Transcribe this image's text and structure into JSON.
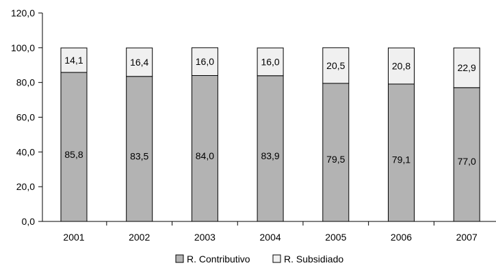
{
  "chart_data": {
    "type": "bar",
    "stacked": true,
    "categories": [
      "2001",
      "2002",
      "2003",
      "2004",
      "2005",
      "2006",
      "2007"
    ],
    "series": [
      {
        "name": "R. Contributivo",
        "color": "#b3b3b3",
        "values": [
          85.8,
          83.5,
          84.0,
          83.9,
          79.5,
          79.1,
          77.0
        ],
        "labels": [
          "85,8",
          "83,5",
          "84,0",
          "83,9",
          "79,5",
          "79,1",
          "77,0"
        ]
      },
      {
        "name": "R. Subsidiado",
        "color": "#f0f0f0",
        "values": [
          14.1,
          16.4,
          16.0,
          16.0,
          20.5,
          20.8,
          22.9
        ],
        "labels": [
          "14,1",
          "16,4",
          "16,0",
          "16,0",
          "20,5",
          "20,8",
          "22,9"
        ]
      }
    ],
    "ylim": [
      0,
      120
    ],
    "yticks": [
      0,
      20,
      40,
      60,
      80,
      100,
      120
    ],
    "ytick_labels": [
      "0,0",
      "20,0",
      "40,0",
      "60,0",
      "80,0",
      "100,0",
      "120,0"
    ],
    "title": "",
    "xlabel": "",
    "ylabel": "",
    "grid": false,
    "legend_position": "bottom"
  }
}
